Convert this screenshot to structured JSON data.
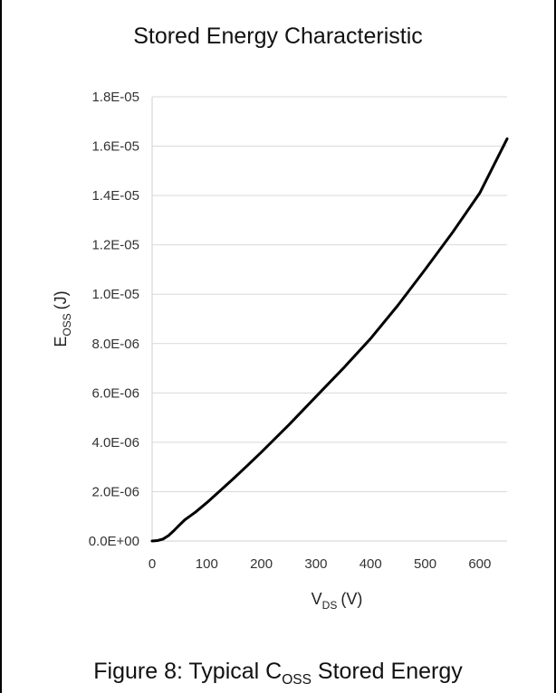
{
  "chart_data": {
    "type": "line",
    "title": "Stored Energy Characteristic",
    "xlabel": {
      "main": "V",
      "sub": "DS",
      "unit": "(V)"
    },
    "ylabel": {
      "main": "E",
      "sub": "OSS",
      "unit": "(J)"
    },
    "xlim": [
      0,
      650
    ],
    "ylim": [
      0,
      1.8e-05
    ],
    "x_ticks": [
      0,
      100,
      200,
      300,
      400,
      500,
      600
    ],
    "x_tick_labels": [
      "0",
      "100",
      "200",
      "300",
      "400",
      "500",
      "600"
    ],
    "y_ticks": [
      0,
      2e-06,
      4e-06,
      6e-06,
      8e-06,
      1e-05,
      1.2e-05,
      1.4e-05,
      1.6e-05,
      1.8e-05
    ],
    "y_tick_labels": [
      "0.0E+00",
      "2.0E-06",
      "4.0E-06",
      "6.0E-06",
      "8.0E-06",
      "1.0E-05",
      "1.2E-05",
      "1.4E-05",
      "1.6E-05",
      "1.8E-05"
    ],
    "grid": "horizontal",
    "series": [
      {
        "color": "#000000",
        "x": [
          0,
          10,
          20,
          30,
          40,
          50,
          60,
          70,
          80,
          100,
          125,
          150,
          175,
          200,
          250,
          300,
          350,
          400,
          450,
          500,
          550,
          600,
          625,
          650
        ],
        "y": [
          0,
          2e-08,
          8e-08,
          2.2e-07,
          4.2e-07,
          6.5e-07,
          8.6e-07,
          1.02e-06,
          1.18e-06,
          1.55e-06,
          2.05e-06,
          2.55e-06,
          3.07e-06,
          3.6e-06,
          4.7e-06,
          5.85e-06,
          7e-06,
          8.2e-06,
          9.55e-06,
          1.1e-05,
          1.25e-05,
          1.41e-05,
          1.52e-05,
          1.63e-05
        ]
      }
    ]
  },
  "caption": {
    "prefix": "Figure 8: Typical C",
    "sub": "OSS",
    "suffix": " Stored Energy"
  }
}
